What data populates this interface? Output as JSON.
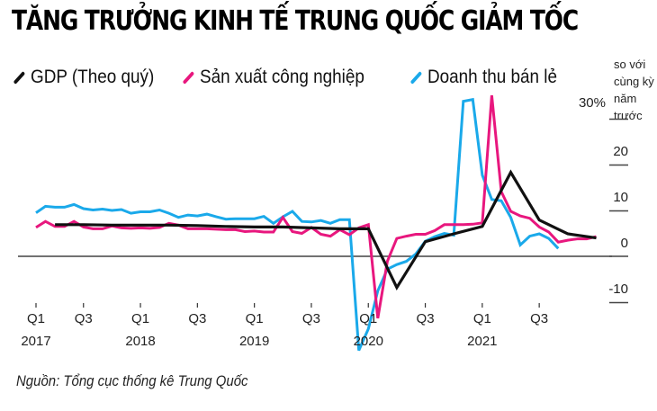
{
  "title": "TĂNG TRƯỞNG KINH TẾ TRUNG QUỐC GIẢM TỐC",
  "legend": [
    {
      "label": "GDP (Theo quý)",
      "color": "#111111"
    },
    {
      "label": "Sản xuất công nghiệp",
      "color": "#e8177e"
    },
    {
      "label": "Doanh thu bán lẻ",
      "color": "#1aa9ea"
    }
  ],
  "unit_note": [
    "so với",
    "cùng kỳ",
    "năm",
    "trước"
  ],
  "source": "Nguồn: Tổng cục thống kê Trung Quốc",
  "chart_data": {
    "type": "line",
    "title": "TĂNG TRƯỞNG KINH TẾ TRUNG QUỐC GIẢM TỐC",
    "xlabel": "",
    "ylabel": "% so với cùng kỳ năm trước",
    "ylim": [
      -12,
      34
    ],
    "yticks": [
      {
        "value": 30,
        "label": "30%"
      },
      {
        "value": 20,
        "label": "20"
      },
      {
        "value": 10,
        "label": "10"
      },
      {
        "value": 0,
        "label": "0"
      },
      {
        "value": -10,
        "label": "-10"
      }
    ],
    "xticks": [
      {
        "month": 0,
        "quarter": "Q1",
        "year": "2017"
      },
      {
        "month": 5,
        "quarter": "Q3",
        "year": ""
      },
      {
        "month": 11,
        "quarter": "Q1",
        "year": "2018"
      },
      {
        "month": 17,
        "quarter": "Q3",
        "year": ""
      },
      {
        "month": 23,
        "quarter": "Q1",
        "year": "2019"
      },
      {
        "month": 29,
        "quarter": "Q3",
        "year": ""
      },
      {
        "month": 35,
        "quarter": "Q1",
        "year": "2020"
      },
      {
        "month": 41,
        "quarter": "Q3",
        "year": ""
      },
      {
        "month": 47,
        "quarter": "Q1",
        "year": "2021"
      },
      {
        "month": 53,
        "quarter": "Q3",
        "year": ""
      }
    ],
    "legend_position": "top",
    "grid": false,
    "series": [
      {
        "name": "GDP (Theo quý)",
        "color": "#111111",
        "points": [
          [
            2,
            6.9
          ],
          [
            5,
            6.9
          ],
          [
            8,
            6.8
          ],
          [
            11,
            6.8
          ],
          [
            14,
            6.8
          ],
          [
            17,
            6.7
          ],
          [
            20,
            6.5
          ],
          [
            23,
            6.4
          ],
          [
            26,
            6.4
          ],
          [
            29,
            6.2
          ],
          [
            32,
            6.0
          ],
          [
            35,
            6.0
          ],
          [
            38,
            -6.8
          ],
          [
            41,
            3.2
          ],
          [
            44,
            4.9
          ],
          [
            47,
            6.5
          ],
          [
            50,
            18.3
          ],
          [
            53,
            7.9
          ],
          [
            56,
            4.9
          ],
          [
            59,
            4.0
          ]
        ]
      },
      {
        "name": "Sản xuất công nghiệp",
        "color": "#e8177e",
        "points": [
          [
            0,
            6.3
          ],
          [
            1,
            7.6
          ],
          [
            2,
            6.5
          ],
          [
            3,
            6.5
          ],
          [
            4,
            7.6
          ],
          [
            5,
            6.4
          ],
          [
            6,
            6.0
          ],
          [
            7,
            6.0
          ],
          [
            8,
            6.6
          ],
          [
            9,
            6.2
          ],
          [
            10,
            6.1
          ],
          [
            11,
            6.2
          ],
          [
            12,
            6.1
          ],
          [
            13,
            6.3
          ],
          [
            14,
            7.2
          ],
          [
            15,
            6.8
          ],
          [
            16,
            6.0
          ],
          [
            17,
            6.0
          ],
          [
            18,
            6.0
          ],
          [
            19,
            5.9
          ],
          [
            20,
            5.8
          ],
          [
            21,
            5.8
          ],
          [
            22,
            5.4
          ],
          [
            23,
            5.5
          ],
          [
            24,
            5.3
          ],
          [
            25,
            5.3
          ],
          [
            26,
            8.5
          ],
          [
            27,
            5.4
          ],
          [
            28,
            5.0
          ],
          [
            29,
            6.3
          ],
          [
            30,
            4.8
          ],
          [
            31,
            4.4
          ],
          [
            32,
            5.8
          ],
          [
            33,
            4.7
          ],
          [
            34,
            6.2
          ],
          [
            35,
            6.9
          ],
          [
            36,
            -13.5
          ],
          [
            37,
            -1.1
          ],
          [
            38,
            3.9
          ],
          [
            39,
            4.4
          ],
          [
            40,
            4.8
          ],
          [
            41,
            4.8
          ],
          [
            42,
            5.6
          ],
          [
            43,
            6.9
          ],
          [
            44,
            6.9
          ],
          [
            45,
            6.9
          ],
          [
            46,
            7.0
          ],
          [
            47,
            7.3
          ],
          [
            48,
            35.1
          ],
          [
            49,
            14.1
          ],
          [
            50,
            9.8
          ],
          [
            51,
            8.8
          ],
          [
            52,
            8.3
          ],
          [
            53,
            6.4
          ],
          [
            54,
            5.3
          ],
          [
            55,
            3.1
          ],
          [
            56,
            3.5
          ],
          [
            57,
            3.8
          ],
          [
            58,
            3.8
          ],
          [
            59,
            4.3
          ]
        ]
      },
      {
        "name": "Doanh thu bán lẻ",
        "color": "#1aa9ea",
        "points": [
          [
            0,
            9.5
          ],
          [
            1,
            10.9
          ],
          [
            2,
            10.7
          ],
          [
            3,
            10.7
          ],
          [
            4,
            11.3
          ],
          [
            5,
            10.4
          ],
          [
            6,
            10.1
          ],
          [
            7,
            10.3
          ],
          [
            8,
            10.0
          ],
          [
            9,
            10.2
          ],
          [
            10,
            9.4
          ],
          [
            11,
            9.7
          ],
          [
            12,
            9.7
          ],
          [
            13,
            10.1
          ],
          [
            14,
            9.4
          ],
          [
            15,
            8.5
          ],
          [
            16,
            9.0
          ],
          [
            17,
            8.8
          ],
          [
            18,
            9.2
          ],
          [
            19,
            8.6
          ],
          [
            20,
            8.1
          ],
          [
            21,
            8.2
          ],
          [
            22,
            8.2
          ],
          [
            23,
            8.2
          ],
          [
            24,
            8.7
          ],
          [
            25,
            7.2
          ],
          [
            26,
            8.6
          ],
          [
            27,
            9.8
          ],
          [
            28,
            7.6
          ],
          [
            29,
            7.5
          ],
          [
            30,
            7.8
          ],
          [
            31,
            7.2
          ],
          [
            32,
            8.0
          ],
          [
            33,
            8.0
          ],
          [
            34,
            -20.5
          ],
          [
            35,
            -15.8
          ],
          [
            36,
            -7.5
          ],
          [
            37,
            -2.8
          ],
          [
            38,
            -1.8
          ],
          [
            39,
            -1.1
          ],
          [
            40,
            0.5
          ],
          [
            41,
            3.3
          ],
          [
            42,
            4.3
          ],
          [
            43,
            5.0
          ],
          [
            44,
            4.6
          ],
          [
            45,
            33.8
          ],
          [
            46,
            34.2
          ],
          [
            47,
            17.7
          ],
          [
            48,
            12.4
          ],
          [
            49,
            12.1
          ],
          [
            50,
            8.5
          ],
          [
            51,
            2.5
          ],
          [
            52,
            4.4
          ],
          [
            53,
            4.9
          ],
          [
            54,
            3.9
          ],
          [
            55,
            1.7
          ]
        ]
      }
    ]
  }
}
